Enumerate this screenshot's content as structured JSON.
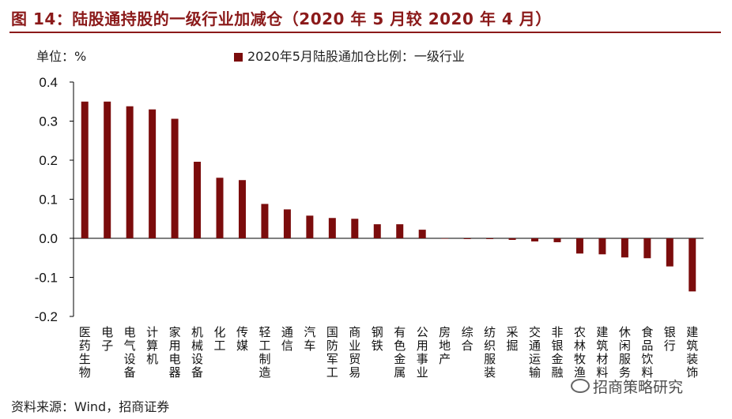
{
  "header": {
    "title": "图 14：陆股通持股的一级行业加减仓（2020 年 5 月较 2020 年 4 月）"
  },
  "unit_label": "单位：%",
  "source": "资料来源：Wind，招商证券",
  "watermark": "招商策略研究",
  "colors": {
    "bar": "#7B0C0C",
    "title": "#8B1A1A",
    "axis": "#000000"
  },
  "chart_data": {
    "type": "bar",
    "categories": [
      "医药生物",
      "电子",
      "电气设备",
      "计算机",
      "家用电器",
      "机械设备",
      "化工",
      "传媒",
      "轻工制造",
      "通信",
      "汽车",
      "国防军工",
      "商业贸易",
      "钢铁",
      "有色金属",
      "公用事业",
      "房地产",
      "综合",
      "纺织服装",
      "采掘",
      "交通运输",
      "非银金融",
      "农林牧渔",
      "建筑材料",
      "休闲服务",
      "食品饮料",
      "银行",
      "建筑装饰"
    ],
    "series": [
      {
        "name": "2020年5月陆股通加仓比例：一级行业",
        "values": [
          0.35,
          0.35,
          0.338,
          0.33,
          0.306,
          0.196,
          0.155,
          0.149,
          0.088,
          0.074,
          0.058,
          0.052,
          0.05,
          0.036,
          0.036,
          0.022,
          0.0,
          -0.002,
          -0.002,
          -0.004,
          -0.008,
          -0.01,
          -0.039,
          -0.041,
          -0.049,
          -0.051,
          -0.072,
          -0.136
        ]
      }
    ],
    "ylim": [
      -0.2,
      0.4
    ],
    "yticks": [
      "0.4",
      "0.3",
      "0.2",
      "0.1",
      "0.0",
      "-0.1",
      "-0.2"
    ],
    "ytick_values": [
      0.4,
      0.3,
      0.2,
      0.1,
      0.0,
      -0.1,
      -0.2
    ],
    "legend_position": "top",
    "grid": false
  }
}
